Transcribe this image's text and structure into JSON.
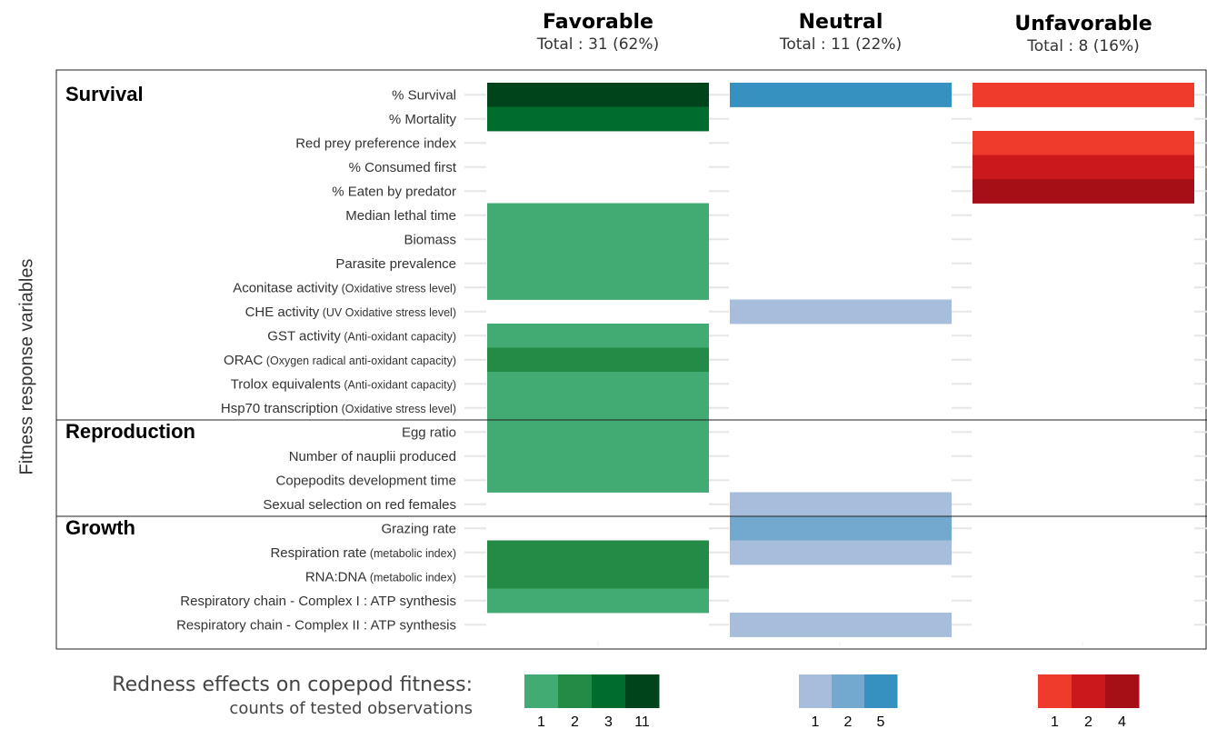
{
  "chart_data": {
    "type": "heatmap",
    "ylabel": "Fitness response variables",
    "columns": [
      {
        "key": "favorable",
        "title": "Favorable",
        "total": "Total : 31 (62%)"
      },
      {
        "key": "neutral",
        "title": "Neutral",
        "total": "Total : 11 (22%)"
      },
      {
        "key": "unfavorable",
        "title": "Unfavorable",
        "total": "Total : 8 (16%)"
      }
    ],
    "groups": [
      {
        "name": "Survival",
        "rows": [
          0,
          13
        ]
      },
      {
        "name": "Reproduction",
        "rows": [
          14,
          17
        ]
      },
      {
        "name": "Growth",
        "rows": [
          18,
          22
        ]
      }
    ],
    "rows": [
      {
        "label": "% Survival",
        "note": "",
        "favorable": 11,
        "neutral": 5,
        "unfavorable": 1
      },
      {
        "label": "% Mortality",
        "note": "",
        "favorable": 3,
        "neutral": null,
        "unfavorable": null
      },
      {
        "label": "Red prey preference index",
        "note": "",
        "favorable": null,
        "neutral": null,
        "unfavorable": 1
      },
      {
        "label": "% Consumed first",
        "note": "",
        "favorable": null,
        "neutral": null,
        "unfavorable": 2
      },
      {
        "label": "% Eaten by predator",
        "note": "",
        "favorable": null,
        "neutral": null,
        "unfavorable": 4
      },
      {
        "label": "Median lethal time",
        "note": "",
        "favorable": 1,
        "neutral": null,
        "unfavorable": null
      },
      {
        "label": "Biomass",
        "note": "",
        "favorable": 1,
        "neutral": null,
        "unfavorable": null
      },
      {
        "label": "Parasite prevalence",
        "note": "",
        "favorable": 1,
        "neutral": null,
        "unfavorable": null
      },
      {
        "label": "Aconitase activity",
        "note": "(Oxidative stress level)",
        "favorable": 1,
        "neutral": null,
        "unfavorable": null
      },
      {
        "label": "CHE activity",
        "note": "(UV Oxidative stress level)",
        "favorable": null,
        "neutral": 1,
        "unfavorable": null
      },
      {
        "label": "GST activity",
        "note": "(Anti-oxidant capacity)",
        "favorable": 1,
        "neutral": null,
        "unfavorable": null
      },
      {
        "label": "ORAC",
        "note": "(Oxygen radical anti-oxidant capacity)",
        "favorable": 2,
        "neutral": null,
        "unfavorable": null
      },
      {
        "label": "Trolox equivalents",
        "note": "(Anti-oxidant capacity)",
        "favorable": 1,
        "neutral": null,
        "unfavorable": null
      },
      {
        "label": "Hsp70 transcription",
        "note": "(Oxidative stress level)",
        "favorable": 1,
        "neutral": null,
        "unfavorable": null
      },
      {
        "label": "Egg ratio",
        "note": "",
        "favorable": 1,
        "neutral": null,
        "unfavorable": null
      },
      {
        "label": "Number of nauplii produced",
        "note": "",
        "favorable": 1,
        "neutral": null,
        "unfavorable": null
      },
      {
        "label": "Copepodits development time",
        "note": "",
        "favorable": 1,
        "neutral": null,
        "unfavorable": null
      },
      {
        "label": "Sexual selection on red females",
        "note": "",
        "favorable": null,
        "neutral": 1,
        "unfavorable": null
      },
      {
        "label": "Grazing rate",
        "note": "",
        "favorable": null,
        "neutral": 2,
        "unfavorable": null
      },
      {
        "label": "Respiration rate",
        "note": "(metabolic index)",
        "favorable": 2,
        "neutral": 1,
        "unfavorable": null
      },
      {
        "label": "RNA:DNA",
        "note": "(metabolic index)",
        "favorable": 2,
        "neutral": null,
        "unfavorable": null
      },
      {
        "label": "Respiratory chain - Complex I : ATP synthesis",
        "note": "",
        "favorable": 1,
        "neutral": null,
        "unfavorable": null
      },
      {
        "label": "Respiratory chain - Complex II : ATP synthesis",
        "note": "",
        "favorable": null,
        "neutral": 1,
        "unfavorable": null
      }
    ],
    "legend": {
      "title": "Redness effects on copepod fitness:",
      "subtitle": "counts of tested observations",
      "scales": [
        {
          "column": "favorable",
          "levels": [
            "1",
            "2",
            "3",
            "11"
          ],
          "colors": [
            "#41ab73",
            "#238b45",
            "#006d2c",
            "#00441b"
          ]
        },
        {
          "column": "neutral",
          "levels": [
            "1",
            "2",
            "5"
          ],
          "colors": [
            "#a6bddb",
            "#74a9cf",
            "#3690c0"
          ]
        },
        {
          "column": "unfavorable",
          "levels": [
            "1",
            "2",
            "4"
          ],
          "colors": [
            "#ef3b2c",
            "#cb181d",
            "#a50f15"
          ]
        }
      ]
    },
    "grid": false
  }
}
